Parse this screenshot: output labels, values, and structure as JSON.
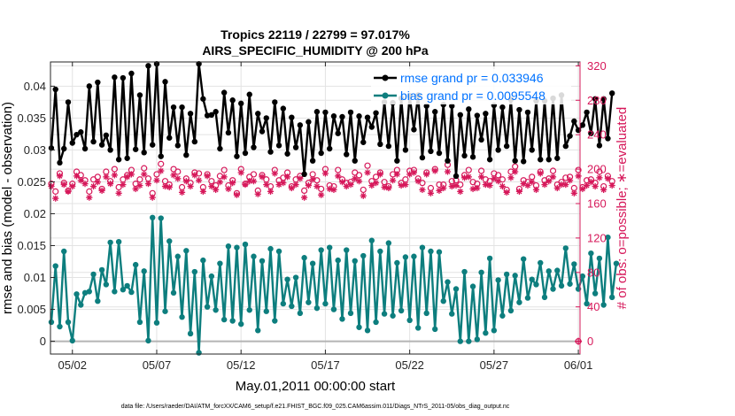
{
  "chart_data": {
    "type": "line",
    "title_line1": "Tropics 22119 / 22799 = 97.017%",
    "title_line2": "AIRS_SPECIFIC_HUMIDITY @ 200 hPa",
    "xlabel": "May.01,2011 00:00:00 start",
    "ylabel_left": "rmse and bias (model - observation)",
    "ylabel_right": "# of obs: o=possible; ∗=evaluated",
    "x_ticks": [
      "05/02",
      "05/07",
      "05/12",
      "05/17",
      "05/22",
      "05/27",
      "06/01"
    ],
    "y_ticks_left": [
      "0",
      "0.005",
      "0.01",
      "0.015",
      "0.02",
      "0.025",
      "0.03",
      "0.035",
      "0.04"
    ],
    "y_ticks_right": [
      "0",
      "40",
      "80",
      "120",
      "160",
      "200",
      "240",
      "280",
      "320"
    ],
    "x_range_days": [
      0.7,
      32.1
    ],
    "ylim_left": [
      -0.002,
      0.0438
    ],
    "ylim_right": [
      -14.8,
      324.5
    ],
    "x_tick_days": [
      2,
      7,
      12,
      17,
      22,
      27,
      32
    ],
    "y_tick_values_left": [
      0,
      0.005,
      0.01,
      0.015,
      0.02,
      0.025,
      0.03,
      0.035,
      0.04
    ],
    "y_tick_values_right": [
      0,
      40,
      80,
      120,
      160,
      200,
      240,
      280,
      320
    ],
    "x_start_day": 0.75,
    "x_step_day": 0.25,
    "legend": [
      {
        "label": "rmse grand pr = 0.033946",
        "color": "#000000"
      },
      {
        "label": "bias grand pr = 0.0095548",
        "color": "#0072ff"
      }
    ],
    "footer": "data file: /Users/raeder/DAI/ATM_forcXX/CAM6_setup/f.e21.FHIST_BGC.f09_025.CAM6assim.011/Diags_NTrS_2011-05/obs_diag_output.nc",
    "colors": {
      "rmse": "#000000",
      "bias": "#0d7e7e",
      "count": "#d6185a",
      "legend_text": "#0072ff",
      "grid": "#e3e3e3",
      "zero_line": "#b4b4b4"
    },
    "series": [
      {
        "name": "rmse",
        "values": [
          0.0303,
          0.0395,
          0.028,
          0.0302,
          0.0375,
          0.0311,
          0.0324,
          0.0328,
          0.0302,
          0.04,
          0.0313,
          0.0406,
          0.0308,
          0.0323,
          0.03,
          0.0414,
          0.0285,
          0.0413,
          0.0287,
          0.042,
          0.0301,
          0.0386,
          0.0296,
          0.0432,
          0.0308,
          0.0435,
          0.029,
          0.0407,
          0.0319,
          0.0367,
          0.0307,
          0.0367,
          0.0292,
          0.0357,
          0.0313,
          0.0435,
          0.038,
          0.0354,
          0.0355,
          0.036,
          0.0302,
          0.039,
          0.0327,
          0.0378,
          0.029,
          0.0373,
          0.0295,
          0.0387,
          0.0304,
          0.0357,
          0.0329,
          0.035,
          0.0297,
          0.0375,
          0.0307,
          0.0365,
          0.0294,
          0.0351,
          0.0304,
          0.0339,
          0.0262,
          0.0344,
          0.0283,
          0.036,
          0.0295,
          0.0359,
          0.0302,
          0.0353,
          0.0326,
          0.0352,
          0.0293,
          0.0359,
          0.0283,
          0.0353,
          0.0312,
          0.0351,
          0.0336,
          0.0358,
          0.0309,
          0.0375,
          0.0306,
          0.0374,
          0.0283,
          0.0381,
          0.03,
          0.0385,
          0.0332,
          0.0386,
          0.0288,
          0.0369,
          0.0298,
          0.036,
          0.0295,
          0.0371,
          0.0283,
          0.0369,
          0.0259,
          0.0355,
          0.0291,
          0.0364,
          0.0289,
          0.0354,
          0.0316,
          0.0357,
          0.0285,
          0.037,
          0.03,
          0.0367,
          0.0306,
          0.0379,
          0.0283,
          0.0363,
          0.0282,
          0.0359,
          0.03,
          0.0377,
          0.0285,
          0.0377,
          0.0285,
          0.0381,
          0.0287,
          0.0386,
          0.0306,
          0.0322,
          0.0345,
          0.0331,
          0.0339,
          0.0359,
          0.0326,
          0.038,
          0.0307,
          0.038,
          0.0318,
          0.0389
        ]
      },
      {
        "name": "bias",
        "values": [
          0.003,
          0.0118,
          0.0023,
          0.0141,
          0.003,
          0.0001,
          0.0074,
          0.0057,
          0.0076,
          0.0078,
          0.0105,
          0.0063,
          0.0112,
          0.0089,
          0.0155,
          0.0078,
          0.0156,
          0.0081,
          0.0087,
          0.0077,
          0.012,
          0.003,
          0.011,
          0.0001,
          0.0194,
          0.0029,
          0.0193,
          0.0047,
          0.0157,
          0.0076,
          0.0133,
          0.0038,
          0.0142,
          0.0012,
          0.0109,
          -0.0018,
          0.0127,
          0.0054,
          0.0102,
          0.0049,
          0.0122,
          0.0034,
          0.0149,
          0.0032,
          0.0147,
          0.0027,
          0.0152,
          0.0049,
          0.0133,
          0.0017,
          0.0126,
          0.0047,
          0.0145,
          0.0032,
          0.0141,
          0.0059,
          0.0097,
          0.0055,
          0.01,
          0.0044,
          0.0131,
          0.0061,
          0.0122,
          0.0052,
          0.0143,
          0.0059,
          0.0147,
          0.005,
          0.0127,
          0.0035,
          0.0143,
          0.0044,
          0.0126,
          0.0022,
          0.0134,
          0.0017,
          0.0158,
          0.003,
          0.0141,
          0.0043,
          0.0154,
          0.004,
          0.0123,
          0.0048,
          0.0132,
          0.0033,
          0.0133,
          0.0021,
          0.0147,
          0.0044,
          0.0141,
          0.0019,
          0.014,
          0.0063,
          0.0093,
          0.0043,
          0.0082,
          0.0,
          0.0109,
          0.0,
          0.0086,
          0.0003,
          0.0108,
          0.0013,
          0.013,
          0.0017,
          0.0096,
          0.004,
          0.0105,
          0.0048,
          0.0103,
          0.0061,
          0.0129,
          0.0068,
          0.0097,
          0.0089,
          0.0123,
          0.0069,
          0.011,
          0.0082,
          0.0111,
          0.0087,
          0.0146,
          0.009,
          0.0121,
          0.0082,
          0.0102,
          0.0059,
          0.0138,
          0.0075,
          0.013,
          0.0057,
          0.0163,
          0.0069,
          0.0122
        ]
      },
      {
        "name": "obs_possible",
        "values": [
          183,
          174,
          195,
          184,
          175,
          183,
          197,
          193,
          187,
          174,
          188,
          191,
          177,
          197,
          186,
          200,
          179,
          188,
          193,
          199,
          183,
          188,
          201,
          189,
          172,
          194,
          206,
          186,
          182,
          200,
          197,
          179,
          189,
          184,
          196,
          195,
          179,
          194,
          186,
          181,
          192,
          199,
          181,
          187,
          172,
          200,
          183,
          191,
          194,
          175,
          193,
          188,
          180,
          199,
          187,
          190,
          196,
          180,
          188,
          192,
          175,
          184,
          194,
          187,
          177,
          200,
          181,
          180,
          199,
          188,
          184,
          185,
          196,
          193,
          176,
          204,
          186,
          191,
          196,
          185,
          180,
          194,
          199,
          184,
          188,
          198,
          199,
          189,
          184,
          196,
          178,
          200,
          182,
          182,
          205,
          186,
          187,
          182,
          193,
          199,
          185,
          183,
          198,
          188,
          186,
          195,
          193,
          188,
          176,
          197,
          203,
          177,
          187,
          185,
          191,
          181,
          197,
          187,
          189,
          198,
          182,
          185,
          190,
          191,
          178,
          199,
          179,
          187,
          188,
          184,
          197,
          180,
          192,
          186
        ]
      },
      {
        "name": "obs_evaluated",
        "values": [
          180,
          166,
          192,
          182,
          174,
          180,
          192,
          187,
          183,
          167,
          180,
          185,
          175,
          191,
          183,
          193,
          172,
          182,
          191,
          194,
          177,
          181,
          194,
          183,
          167,
          187,
          198,
          180,
          179,
          193,
          189,
          173,
          186,
          180,
          193,
          187,
          174,
          192,
          180,
          176,
          185,
          191,
          177,
          184,
          170,
          196,
          182,
          186,
          186,
          171,
          191,
          182,
          174,
          195,
          182,
          184,
          191,
          178,
          182,
          189,
          167,
          181,
          188,
          180,
          170,
          195,
          177,
          176,
          192,
          185,
          180,
          182,
          189,
          186,
          169,
          196,
          181,
          184,
          194,
          179,
          178,
          187,
          194,
          181,
          182,
          194,
          196,
          186,
          176,
          194,
          172,
          198,
          175,
          178,
          197,
          180,
          181,
          174,
          190,
          191,
          177,
          178,
          191,
          182,
          181,
          189,
          186,
          180,
          173,
          190,
          197,
          174,
          183,
          181,
          185,
          176,
          195,
          182,
          186,
          191,
          178,
          182,
          182,
          187,
          172,
          192,
          177,
          181,
          185,
          180,
          190,
          176,
          189,
          181
        ]
      }
    ]
  }
}
